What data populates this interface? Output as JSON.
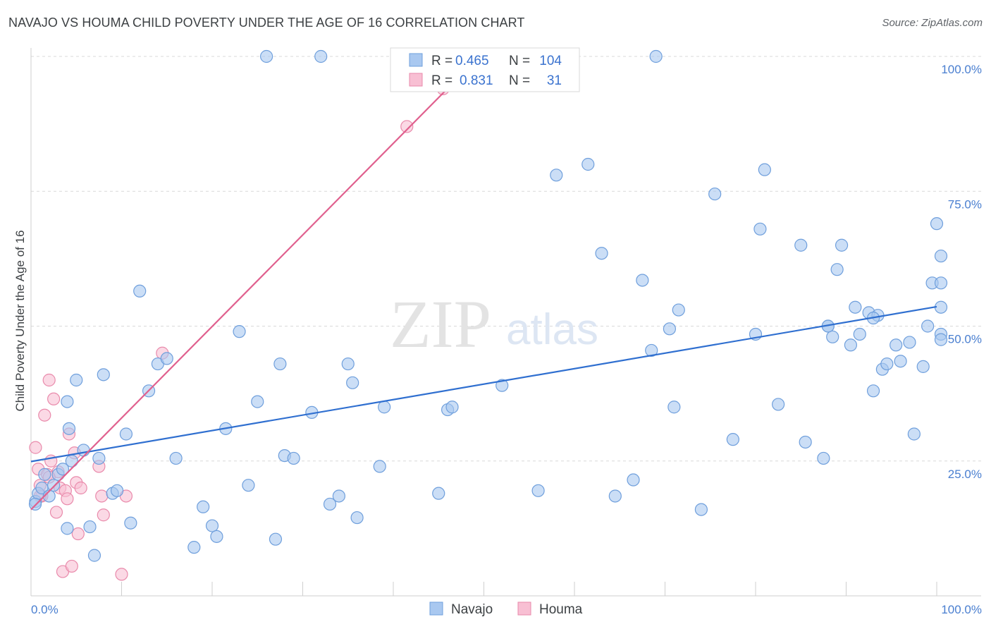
{
  "header": {
    "title": "NAVAJO VS HOUMA CHILD POVERTY UNDER THE AGE OF 16 CORRELATION CHART",
    "source": "Source: ZipAtlas.com"
  },
  "watermark": {
    "zip": "ZIP",
    "atlas": "atlas"
  },
  "colors": {
    "navajo_fill": "#a9c8f0",
    "navajo_stroke": "#6f9fdc",
    "navajo_line": "#2f6fd0",
    "houma_fill": "#f8bfd3",
    "houma_stroke": "#e98aab",
    "houma_line": "#e0608e",
    "tick_text": "#4a7fd0",
    "grid": "#d9d9d9"
  },
  "legend": {
    "rows": [
      {
        "r_label": "R =",
        "r_value": "0.465",
        "n_label": "N =",
        "n_value": "104"
      },
      {
        "r_label": "R =",
        "r_value": "0.831",
        "n_label": "N =",
        "n_value": "31"
      }
    ]
  },
  "bottom_legend": [
    "Navajo",
    "Houma"
  ],
  "chart_data": {
    "type": "scatter",
    "title": "NAVAJO VS HOUMA CHILD POVERTY UNDER THE AGE OF 16 CORRELATION CHART",
    "xlabel": "",
    "ylabel": "Child Poverty Under the Age of 16",
    "xlim": [
      0,
      100
    ],
    "ylim": [
      0,
      100
    ],
    "x_tick_labels": [
      "0.0%",
      "100.0%"
    ],
    "y_tick_labels": [
      "25.0%",
      "50.0%",
      "75.0%",
      "100.0%"
    ],
    "y_ticks": [
      25,
      50,
      75,
      100
    ],
    "x_tick_marks": [
      0,
      10,
      20,
      30,
      40,
      50,
      60,
      70,
      80,
      90,
      100
    ],
    "grid": true,
    "legend_placement": "top-center",
    "series": [
      {
        "name": "Navajo",
        "r": 0.465,
        "n": 104,
        "trend": {
          "x": [
            0,
            100
          ],
          "y": [
            24.9,
            53.6
          ]
        },
        "points": [
          [
            0.5,
            17.5
          ],
          [
            0.8,
            19.0
          ],
          [
            1.2,
            20.0
          ],
          [
            1.5,
            22.5
          ],
          [
            2.0,
            18.5
          ],
          [
            2.5,
            20.5
          ],
          [
            3.0,
            22.5
          ],
          [
            3.5,
            23.5
          ],
          [
            4.0,
            12.5
          ],
          [
            4.5,
            25.0
          ],
          [
            4.2,
            31.0
          ],
          [
            4.0,
            36.0
          ],
          [
            5.0,
            40.0
          ],
          [
            5.8,
            27.0
          ],
          [
            6.5,
            12.8
          ],
          [
            7.0,
            7.5
          ],
          [
            7.5,
            25.5
          ],
          [
            8.0,
            41.0
          ],
          [
            9.0,
            19.0
          ],
          [
            9.5,
            19.5
          ],
          [
            10.5,
            30.0
          ],
          [
            11.0,
            13.5
          ],
          [
            12.0,
            56.5
          ],
          [
            13.0,
            38.0
          ],
          [
            14.0,
            43.0
          ],
          [
            15.0,
            44.0
          ],
          [
            16.0,
            25.5
          ],
          [
            18.0,
            9.0
          ],
          [
            19.0,
            16.5
          ],
          [
            20.0,
            13.0
          ],
          [
            20.5,
            11.0
          ],
          [
            21.5,
            31.0
          ],
          [
            23.0,
            49.0
          ],
          [
            24.0,
            20.5
          ],
          [
            25.0,
            36.0
          ],
          [
            26.0,
            100.0
          ],
          [
            27.0,
            10.5
          ],
          [
            27.5,
            43.0
          ],
          [
            28.0,
            26.0
          ],
          [
            29.0,
            25.5
          ],
          [
            31.0,
            34.0
          ],
          [
            32.0,
            100.0
          ],
          [
            33.0,
            17.0
          ],
          [
            34.0,
            18.5
          ],
          [
            35.0,
            43.0
          ],
          [
            35.5,
            39.5
          ],
          [
            36.0,
            14.5
          ],
          [
            38.5,
            24.0
          ],
          [
            39.0,
            35.0
          ],
          [
            40.5,
            100.0
          ],
          [
            45.0,
            19.0
          ],
          [
            46.0,
            34.5
          ],
          [
            46.5,
            35.0
          ],
          [
            52.0,
            39.0
          ],
          [
            56.0,
            19.5
          ],
          [
            58.0,
            78.0
          ],
          [
            61.5,
            80.0
          ],
          [
            63.0,
            63.5
          ],
          [
            64.5,
            18.5
          ],
          [
            66.5,
            21.5
          ],
          [
            67.5,
            58.5
          ],
          [
            68.5,
            45.5
          ],
          [
            69.0,
            100.0
          ],
          [
            70.5,
            49.5
          ],
          [
            71.0,
            35.0
          ],
          [
            71.5,
            53.0
          ],
          [
            74.0,
            16.0
          ],
          [
            75.5,
            74.5
          ],
          [
            77.5,
            29.0
          ],
          [
            80.0,
            48.5
          ],
          [
            80.5,
            68.0
          ],
          [
            81.0,
            79.0
          ],
          [
            82.5,
            35.5
          ],
          [
            85.0,
            65.0
          ],
          [
            85.5,
            28.5
          ],
          [
            87.5,
            25.5
          ],
          [
            88.0,
            50.0
          ],
          [
            88.5,
            48.0
          ],
          [
            89.0,
            60.5
          ],
          [
            89.5,
            65.0
          ],
          [
            90.5,
            46.5
          ],
          [
            91.0,
            53.5
          ],
          [
            91.5,
            48.5
          ],
          [
            92.5,
            52.5
          ],
          [
            93.0,
            38.0
          ],
          [
            93.5,
            52.0
          ],
          [
            94.0,
            42.0
          ],
          [
            94.5,
            43.0
          ],
          [
            95.5,
            46.5
          ],
          [
            96.0,
            43.5
          ],
          [
            97.0,
            47.0
          ],
          [
            97.5,
            30.0
          ],
          [
            98.5,
            42.5
          ],
          [
            99.0,
            50.0
          ],
          [
            99.5,
            58.0
          ],
          [
            100.0,
            69.0
          ],
          [
            100.5,
            63.0
          ],
          [
            101.5,
            48.5
          ],
          [
            102.0,
            47.5
          ],
          [
            102.5,
            58.0
          ],
          [
            103.0,
            53.5
          ],
          [
            93.0,
            51.5
          ],
          [
            88.0,
            50.0
          ],
          [
            0.3,
            17.0
          ]
        ]
      },
      {
        "name": "Houma",
        "r": 0.831,
        "n": 31,
        "trend": {
          "x": [
            0,
            49.5
          ],
          "y": [
            16.0,
            100.0
          ]
        },
        "points": [
          [
            0.5,
            27.5
          ],
          [
            0.8,
            23.5
          ],
          [
            1.0,
            20.5
          ],
          [
            1.2,
            18.5
          ],
          [
            1.5,
            33.5
          ],
          [
            1.8,
            22.5
          ],
          [
            2.0,
            40.0
          ],
          [
            2.2,
            25.0
          ],
          [
            2.5,
            36.5
          ],
          [
            2.8,
            15.5
          ],
          [
            3.0,
            23.0
          ],
          [
            3.2,
            20.0
          ],
          [
            3.5,
            4.5
          ],
          [
            3.8,
            19.5
          ],
          [
            4.0,
            18.0
          ],
          [
            4.2,
            30.0
          ],
          [
            4.5,
            5.5
          ],
          [
            4.8,
            26.5
          ],
          [
            5.0,
            21.0
          ],
          [
            5.2,
            11.5
          ],
          [
            5.5,
            20.0
          ],
          [
            7.5,
            24.0
          ],
          [
            7.8,
            18.5
          ],
          [
            8.0,
            15.0
          ],
          [
            10.0,
            4.0
          ],
          [
            10.5,
            18.5
          ],
          [
            14.5,
            45.0
          ],
          [
            41.5,
            87.0
          ],
          [
            45.5,
            94.0
          ],
          [
            1.0,
            18.5
          ],
          [
            2.0,
            22.0
          ]
        ]
      }
    ]
  }
}
